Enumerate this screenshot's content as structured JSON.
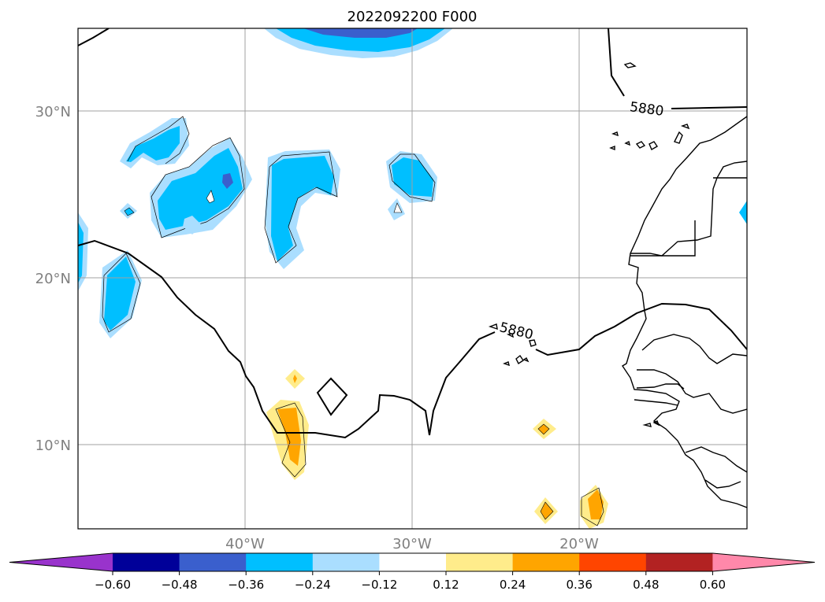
{
  "map": {
    "title": "2022092200 F000",
    "lat_labels": [
      "30°N",
      "20°N",
      "10°N"
    ],
    "lon_labels": [
      "40°W",
      "30°W",
      "20°W"
    ],
    "contour_labels": [
      "5880",
      "5880"
    ],
    "label_color": "#808080",
    "grid_color": "#a0a0a0"
  },
  "colorbar": {
    "ticks": [
      "−0.60",
      "−0.48",
      "−0.36",
      "−0.24",
      "−0.12",
      "0.12",
      "0.24",
      "0.36",
      "0.48",
      "0.60"
    ],
    "colors": [
      "#9933cc",
      "#000099",
      "#3a5fcd",
      "#00bfff",
      "#aadeff",
      "#ffffff",
      "#ffec8b",
      "#ffa500",
      "#ff4500",
      "#b22222",
      "#ff88aa"
    ]
  }
}
